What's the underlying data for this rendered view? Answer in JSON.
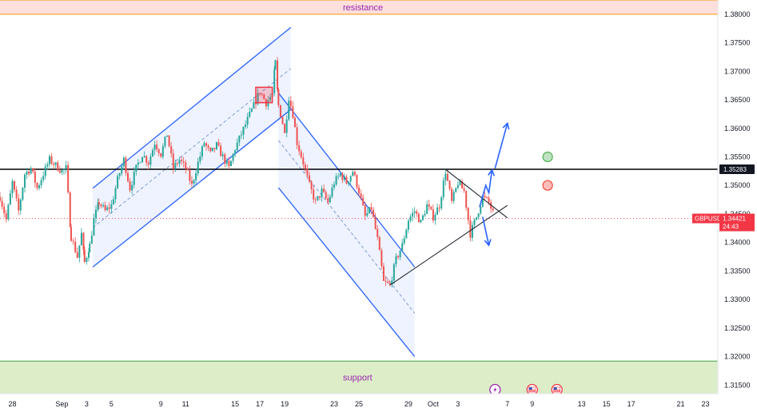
{
  "chart_data": {
    "type": "candlestick",
    "symbol": "GBPUSD",
    "y_range": [
      1.3135,
      1.3825
    ],
    "x_range": [
      "2024-08-27",
      "2024-10-24"
    ],
    "y_ticks": [
      "1.38000",
      "1.37500",
      "1.37000",
      "1.36500",
      "1.36000",
      "1.35500",
      "1.35000",
      "1.34500",
      "1.34000",
      "1.33500",
      "1.33000",
      "1.32500",
      "1.32000",
      "1.31500"
    ],
    "x_ticks": [
      {
        "date": "2024-08-28",
        "label": "28"
      },
      {
        "date": "2024-09-01",
        "label": "Sep"
      },
      {
        "date": "2024-09-03",
        "label": "3"
      },
      {
        "date": "2024-09-05",
        "label": "5"
      },
      {
        "date": "2024-09-09",
        "label": "9"
      },
      {
        "date": "2024-09-11",
        "label": "11"
      },
      {
        "date": "2024-09-15",
        "label": "15"
      },
      {
        "date": "2024-09-17",
        "label": "17"
      },
      {
        "date": "2024-09-19",
        "label": "19"
      },
      {
        "date": "2024-09-23",
        "label": "23"
      },
      {
        "date": "2024-09-25",
        "label": "25"
      },
      {
        "date": "2024-09-29",
        "label": "29"
      },
      {
        "date": "2024-10-01",
        "label": "Oct"
      },
      {
        "date": "2024-10-03",
        "label": "3"
      },
      {
        "date": "2024-10-07",
        "label": "7"
      },
      {
        "date": "2024-10-09",
        "label": "9"
      },
      {
        "date": "2024-10-13",
        "label": "13"
      },
      {
        "date": "2024-10-15",
        "label": "15"
      },
      {
        "date": "2024-10-17",
        "label": "17"
      },
      {
        "date": "2024-10-21",
        "label": "21"
      },
      {
        "date": "2024-10-23",
        "label": "23"
      }
    ],
    "horizontal_line": {
      "value": 1.35283,
      "label": "1.35283"
    },
    "current_price": {
      "value": 1.34421,
      "symbol": "GBPUSD",
      "price_label": "1.34421",
      "countdown": "24:43"
    },
    "zones": [
      {
        "name": "resistance",
        "label": "resistance",
        "from": 1.38,
        "to": 1.3825
      },
      {
        "name": "support",
        "label": "support",
        "from": 1.3135,
        "to": 1.3192
      }
    ],
    "price_path": [
      [
        "2024-08-27T00:00",
        1.348
      ],
      [
        "2024-08-27T12:00",
        1.344
      ],
      [
        "2024-08-28T00:00",
        1.3505
      ],
      [
        "2024-08-28T12:00",
        1.3455
      ],
      [
        "2024-08-29T00:00",
        1.352
      ],
      [
        "2024-08-29T12:00",
        1.353
      ],
      [
        "2024-08-30T00:00",
        1.3495
      ],
      [
        "2024-08-30T12:00",
        1.352
      ],
      [
        "2024-08-31T00:00",
        1.3545
      ],
      [
        "2024-09-01T00:00",
        1.3525
      ],
      [
        "2024-09-01T08:00",
        1.353
      ],
      [
        "2024-09-01T18:00",
        1.341
      ],
      [
        "2024-09-02T06:00",
        1.3375
      ],
      [
        "2024-09-02T14:00",
        1.3415
      ],
      [
        "2024-09-02T20:00",
        1.3365
      ],
      [
        "2024-09-03T06:00",
        1.3395
      ],
      [
        "2024-09-03T14:00",
        1.344
      ],
      [
        "2024-09-04T00:00",
        1.347
      ],
      [
        "2024-09-04T12:00",
        1.3455
      ],
      [
        "2024-09-05T00:00",
        1.3465
      ],
      [
        "2024-09-05T12:00",
        1.351
      ],
      [
        "2024-09-06T00:00",
        1.3545
      ],
      [
        "2024-09-06T12:00",
        1.3495
      ],
      [
        "2024-09-07T00:00",
        1.353
      ],
      [
        "2024-09-07T12:00",
        1.3555
      ],
      [
        "2024-09-08T00:00",
        1.354
      ],
      [
        "2024-09-08T12:00",
        1.3575
      ],
      [
        "2024-09-09T00:00",
        1.3555
      ],
      [
        "2024-09-09T12:00",
        1.359
      ],
      [
        "2024-09-10T00:00",
        1.353
      ],
      [
        "2024-09-10T12:00",
        1.3545
      ],
      [
        "2024-09-11T00:00",
        1.353
      ],
      [
        "2024-09-11T12:00",
        1.35
      ],
      [
        "2024-09-12T00:00",
        1.354
      ],
      [
        "2024-09-12T12:00",
        1.3575
      ],
      [
        "2024-09-13T00:00",
        1.3555
      ],
      [
        "2024-09-13T12:00",
        1.357
      ],
      [
        "2024-09-14T00:00",
        1.355
      ],
      [
        "2024-09-14T12:00",
        1.353
      ],
      [
        "2024-09-15T00:00",
        1.3565
      ],
      [
        "2024-09-15T12:00",
        1.359
      ],
      [
        "2024-09-16T00:00",
        1.3615
      ],
      [
        "2024-09-16T12:00",
        1.364
      ],
      [
        "2024-09-17T00:00",
        1.3665
      ],
      [
        "2024-09-17T12:00",
        1.3645
      ],
      [
        "2024-09-18T00:00",
        1.366
      ],
      [
        "2024-09-18T06:00",
        1.3715
      ],
      [
        "2024-09-18T12:00",
        1.364
      ],
      [
        "2024-09-18T20:00",
        1.361
      ],
      [
        "2024-09-19T00:00",
        1.359
      ],
      [
        "2024-09-19T08:00",
        1.3655
      ],
      [
        "2024-09-19T16:00",
        1.3625
      ],
      [
        "2024-09-20T00:00",
        1.3575
      ],
      [
        "2024-09-20T12:00",
        1.354
      ],
      [
        "2024-09-21T00:00",
        1.35
      ],
      [
        "2024-09-21T12:00",
        1.347
      ],
      [
        "2024-09-22T00:00",
        1.349
      ],
      [
        "2024-09-22T12:00",
        1.347
      ],
      [
        "2024-09-23T00:00",
        1.3505
      ],
      [
        "2024-09-23T12:00",
        1.352
      ],
      [
        "2024-09-24T00:00",
        1.3505
      ],
      [
        "2024-09-24T12:00",
        1.3525
      ],
      [
        "2024-09-25T00:00",
        1.349
      ],
      [
        "2024-09-25T12:00",
        1.3445
      ],
      [
        "2024-09-26T00:00",
        1.346
      ],
      [
        "2024-09-26T12:00",
        1.3405
      ],
      [
        "2024-09-27T00:00",
        1.333
      ],
      [
        "2024-09-27T12:00",
        1.3325
      ],
      [
        "2024-09-28T00:00",
        1.337
      ],
      [
        "2024-09-28T12:00",
        1.3395
      ],
      [
        "2024-09-29T00:00",
        1.344
      ],
      [
        "2024-09-29T12:00",
        1.3455
      ],
      [
        "2024-09-30T00:00",
        1.3435
      ],
      [
        "2024-09-30T12:00",
        1.3465
      ],
      [
        "2024-10-01T00:00",
        1.3445
      ],
      [
        "2024-10-01T12:00",
        1.3465
      ],
      [
        "2024-10-02T00:00",
        1.3525
      ],
      [
        "2024-10-02T12:00",
        1.347
      ],
      [
        "2024-10-03T00:00",
        1.3505
      ],
      [
        "2024-10-03T12:00",
        1.349
      ],
      [
        "2024-10-04T00:00",
        1.3415
      ],
      [
        "2024-10-04T12:00",
        1.3445
      ],
      [
        "2024-10-05T00:00",
        1.348
      ],
      [
        "2024-10-05T12:00",
        1.347
      ],
      [
        "2024-10-06T00:00",
        1.3442
      ]
    ],
    "drawings": {
      "ascending_channel": {
        "upper": [
          [
            "2024-09-03T12:00",
            1.3495
          ],
          [
            "2024-09-19T12:00",
            1.3777
          ]
        ],
        "lower": [
          [
            "2024-09-03T12:00",
            1.3357
          ],
          [
            "2024-09-19T12:00",
            1.3633
          ]
        ],
        "median": [
          [
            "2024-09-03T12:00",
            1.3426
          ],
          [
            "2024-09-19T12:00",
            1.3705
          ]
        ]
      },
      "descending_channel": {
        "upper": [
          [
            "2024-09-18T12:00",
            1.3662
          ],
          [
            "2024-09-29T12:00",
            1.3357
          ]
        ],
        "lower": [
          [
            "2024-09-18T12:00",
            1.3496
          ],
          [
            "2024-09-29T12:00",
            1.32
          ]
        ],
        "median": [
          [
            "2024-09-18T12:00",
            1.3579
          ],
          [
            "2024-09-29T12:00",
            1.3276
          ]
        ]
      },
      "highlight_box": {
        "from": "2024-09-16T16:00",
        "to": "2024-09-18T00:00",
        "low": 1.3645,
        "high": 1.3672
      },
      "triangle": {
        "upper": [
          [
            "2024-10-02T00:00",
            1.3528
          ],
          [
            "2024-10-07T00:00",
            1.3443
          ]
        ],
        "lower": [
          [
            "2024-09-27T12:00",
            1.3325
          ],
          [
            "2024-10-07T00:00",
            1.3465
          ]
        ]
      },
      "arrows": [
        {
          "direction": "up",
          "points": [
            [
              "2024-10-04T18:00",
              1.3462
            ],
            [
              "2024-10-05T06:00",
              1.35
            ],
            [
              "2024-10-05T12:00",
              1.3487
            ],
            [
              "2024-10-05T18:00",
              1.3527
            ]
          ]
        },
        {
          "direction": "down",
          "points": [
            [
              "2024-10-05T00:00",
              1.3445
            ],
            [
              "2024-10-05T12:00",
              1.3395
            ]
          ]
        },
        {
          "direction": "up",
          "points": [
            [
              "2024-10-06T00:00",
              1.353
            ],
            [
              "2024-10-07T00:00",
              1.3609
            ]
          ]
        }
      ],
      "markers": [
        {
          "color": "#4caf50",
          "date": "2024-10-10T06:00",
          "value": 1.355
        },
        {
          "color": "#f44336",
          "date": "2024-10-10T06:00",
          "value": 1.35
        }
      ],
      "event_icons": [
        {
          "date": "2024-10-06T00:00",
          "kind": "flash"
        },
        {
          "date": "2024-10-09T00:00",
          "kind": "us-flag"
        },
        {
          "date": "2024-10-11T00:00",
          "kind": "us-flag"
        }
      ]
    },
    "colors": {
      "up": "#26a69a",
      "down": "#ef5350",
      "channel": "#2962ff",
      "channel_fill": "rgba(41,98,255,0.08)",
      "resistance_fill": "#fde0dc",
      "resistance_edge": "#ff9800",
      "support_fill": "#dcedc8",
      "support_edge": "#43a047",
      "price_tag": "#f23645"
    }
  }
}
